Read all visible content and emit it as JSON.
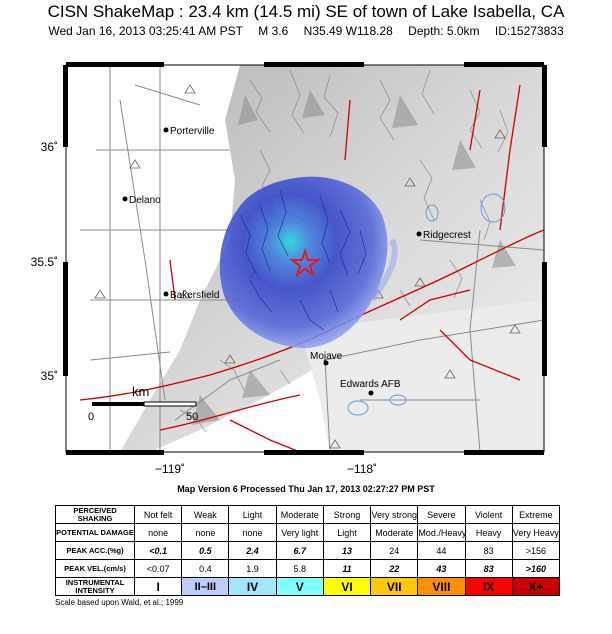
{
  "header": {
    "title": "CISN ShakeMap : 23.4 km (14.5 mi) SE of town of Lake Isabella, CA",
    "datetime": "Wed Jan 16, 2013 03:25:41 AM PST",
    "magnitude": "M 3.6",
    "location": "N35.49 W118.28",
    "depth": "Depth: 5.0km",
    "event_id": "ID:15273833"
  },
  "map": {
    "lat_labels": [
      "36˚",
      "35.5˚",
      "35˚"
    ],
    "lon_labels": [
      "−119˚",
      "−118˚"
    ],
    "cities": [
      {
        "name": "Porterville"
      },
      {
        "name": "Delano"
      },
      {
        "name": "Ridgecrest"
      },
      {
        "name": "Bakersfield"
      },
      {
        "name": "Mojave"
      },
      {
        "name": "Edwards AFB"
      }
    ],
    "scalebar": {
      "unit": "km",
      "ticks": [
        "0",
        "50"
      ]
    },
    "colors": {
      "epicenter_star": "#e21b1b",
      "fault": "#cc0000",
      "roads": "#8a8a8a",
      "water": "#6b9ad6"
    }
  },
  "version_text": "Map Version 6 Processed Thu Jan 17, 2013 02:27:27 PM PST",
  "legend": {
    "rows": [
      {
        "header": "PERCEIVED SHAKING",
        "cells": [
          "Not felt",
          "Weak",
          "Light",
          "Moderate",
          "Strong",
          "Very strong",
          "Severe",
          "Violent",
          "Extreme"
        ]
      },
      {
        "header": "POTENTIAL DAMAGE",
        "cells": [
          "none",
          "none",
          "none",
          "Very light",
          "Light",
          "Moderate",
          "Mod./Heavy",
          "Heavy",
          "Very Heavy"
        ]
      },
      {
        "header": "PEAK ACC.(%g)",
        "cells": [
          "<0.1",
          "0.5",
          "2.4",
          "6.7",
          "13",
          "24",
          "44",
          "83",
          ">156"
        ]
      },
      {
        "header": "PEAK VEL.(cm/s)",
        "cells": [
          "<0.07",
          "0.4",
          "1.9",
          "5.8",
          "11",
          "22",
          "43",
          "83",
          ">160"
        ]
      }
    ],
    "intensity": {
      "header": "INSTRUMENTAL INTENSITY",
      "cells": [
        "I",
        "II–III",
        "IV",
        "V",
        "VI",
        "VII",
        "VIII",
        "IX",
        "X+"
      ],
      "colors": [
        "#ffffff",
        "#bfccff",
        "#a0e6ff",
        "#80ffff",
        "#ffff00",
        "#ffc800",
        "#ff9100",
        "#ff0000",
        "#c80000"
      ]
    },
    "note": "Scale based upon Wald, et al.; 1999"
  }
}
